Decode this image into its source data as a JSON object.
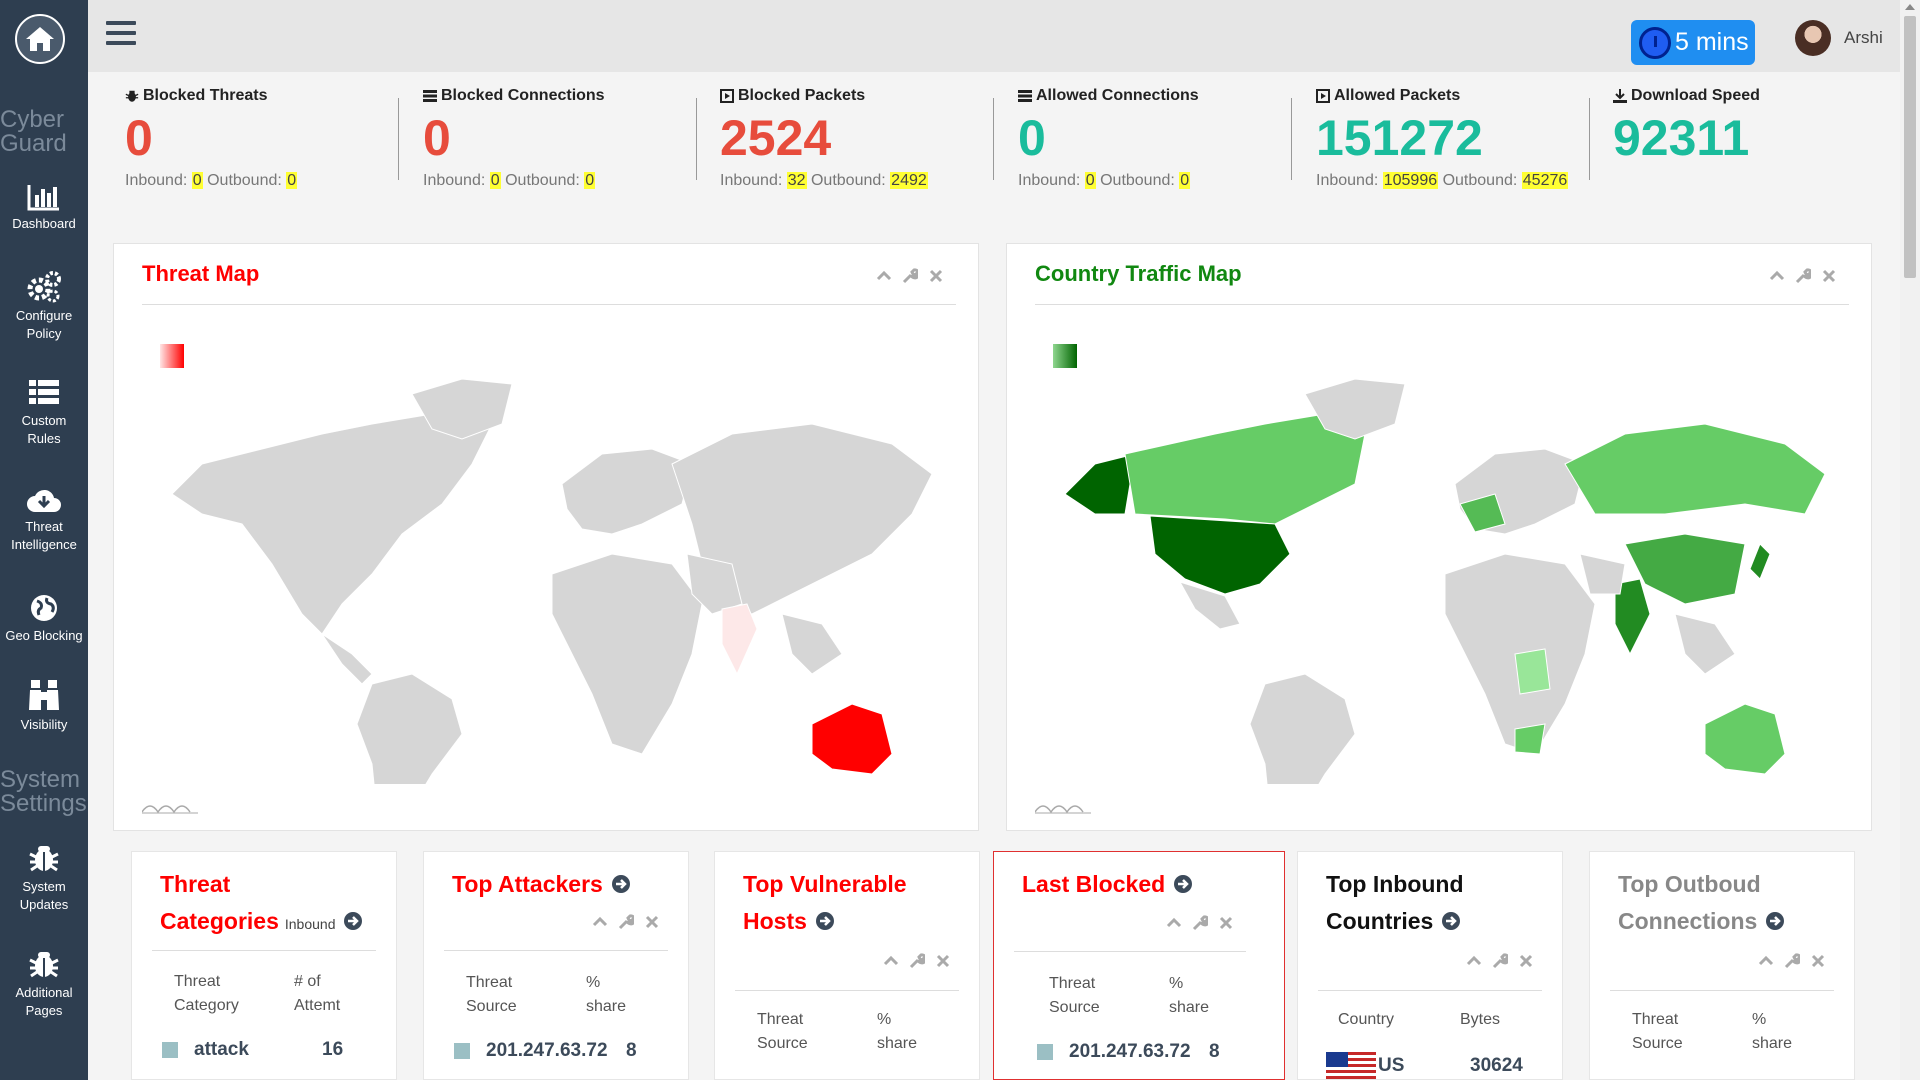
{
  "sidebar": {
    "brand_top_1": "Cyber",
    "brand_top_2": "Guard",
    "section_2_1": "System",
    "section_2_2": "Settings",
    "items": [
      {
        "label": "Dashboard",
        "icon": "bar-chart-icon"
      },
      {
        "label_1": "Configure",
        "label_2": "Policy",
        "icon": "gears-icon"
      },
      {
        "label_1": "Custom",
        "label_2": "Rules",
        "icon": "list-icon"
      },
      {
        "label_1": "Threat",
        "label_2": "Intelligence",
        "icon": "cloud-download-icon"
      },
      {
        "label": "Geo Blocking",
        "icon": "globe-icon"
      },
      {
        "label": "Visibility",
        "icon": "binoculars-icon"
      },
      {
        "label_1": "System",
        "label_2": "Updates",
        "icon": "bug-icon"
      },
      {
        "label_1": "Additional",
        "label_2": "Pages",
        "icon": "bug-icon"
      }
    ]
  },
  "topbar": {
    "timer_label": "5 mins",
    "user_name": "Arshi"
  },
  "stats": [
    {
      "title": "Blocked Threats",
      "value": "0",
      "inbound_label": "Inbound:",
      "inbound": "0",
      "outbound_label": "Outbound:",
      "outbound": "0",
      "color": "#e74c3c"
    },
    {
      "title": "Blocked Connections",
      "value": "0",
      "inbound_label": "Inbound:",
      "inbound": "0",
      "outbound_label": "Outbound:",
      "outbound": "0",
      "color": "#e74c3c"
    },
    {
      "title": "Blocked Packets",
      "value": "2524",
      "inbound_label": "Inbound:",
      "inbound": "32",
      "outbound_label": "Outbound:",
      "outbound": "2492",
      "color": "#e74c3c"
    },
    {
      "title": "Allowed Connections",
      "value": "0",
      "inbound_label": "Inbound:",
      "inbound": "0",
      "outbound_label": "Outbound:",
      "outbound": "0",
      "color": "#1abc9c"
    },
    {
      "title": "Allowed Packets",
      "value": "151272",
      "inbound_label": "Inbound:",
      "inbound": "105996",
      "outbound_label": "Outbound:",
      "outbound": "45276",
      "color": "#1abc9c"
    },
    {
      "title": "Download Speed",
      "value": "92311",
      "color": "#1abc9c"
    }
  ],
  "maps": {
    "threat": {
      "title": "Threat Map",
      "color": "#ff0000"
    },
    "country": {
      "title": "Country Traffic Map",
      "color": "#118811"
    }
  },
  "cards": {
    "threat_categories": {
      "title_1": "Threat",
      "title_2": "Categories",
      "sub": "Inbound",
      "col1_1": "Threat",
      "col1_2": "Category",
      "col2_1": "# of",
      "col2_2": "Attemt",
      "row_label": "attack",
      "row_value": "16"
    },
    "top_attackers": {
      "title": "Top Attackers",
      "col1_1": "Threat",
      "col1_2": "Source",
      "col2_1": "%",
      "col2_2": "share",
      "row_label": "201.247.63.72",
      "row_value": "8"
    },
    "top_vulnerable": {
      "title_1": "Top Vulnerable",
      "title_2": "Hosts",
      "col1_1": "Threat",
      "col1_2": "Source",
      "col2_1": "%",
      "col2_2": "share"
    },
    "last_blocked": {
      "title": "Last Blocked",
      "col1_1": "Threat",
      "col1_2": "Source",
      "col2_1": "%",
      "col2_2": "share",
      "row_label": "201.247.63.72",
      "row_value": "8"
    },
    "top_inbound": {
      "title_1": "Top Inbound",
      "title_2": "Countries",
      "col1": "Country",
      "col2": "Bytes",
      "row_label": "US",
      "row_value": "30624"
    },
    "top_outbound": {
      "title_1": "Top Outboud",
      "title_2": "Connections",
      "col1_1": "Threat",
      "col1_2": "Source",
      "col2_1": "%",
      "col2_2": "share"
    }
  }
}
